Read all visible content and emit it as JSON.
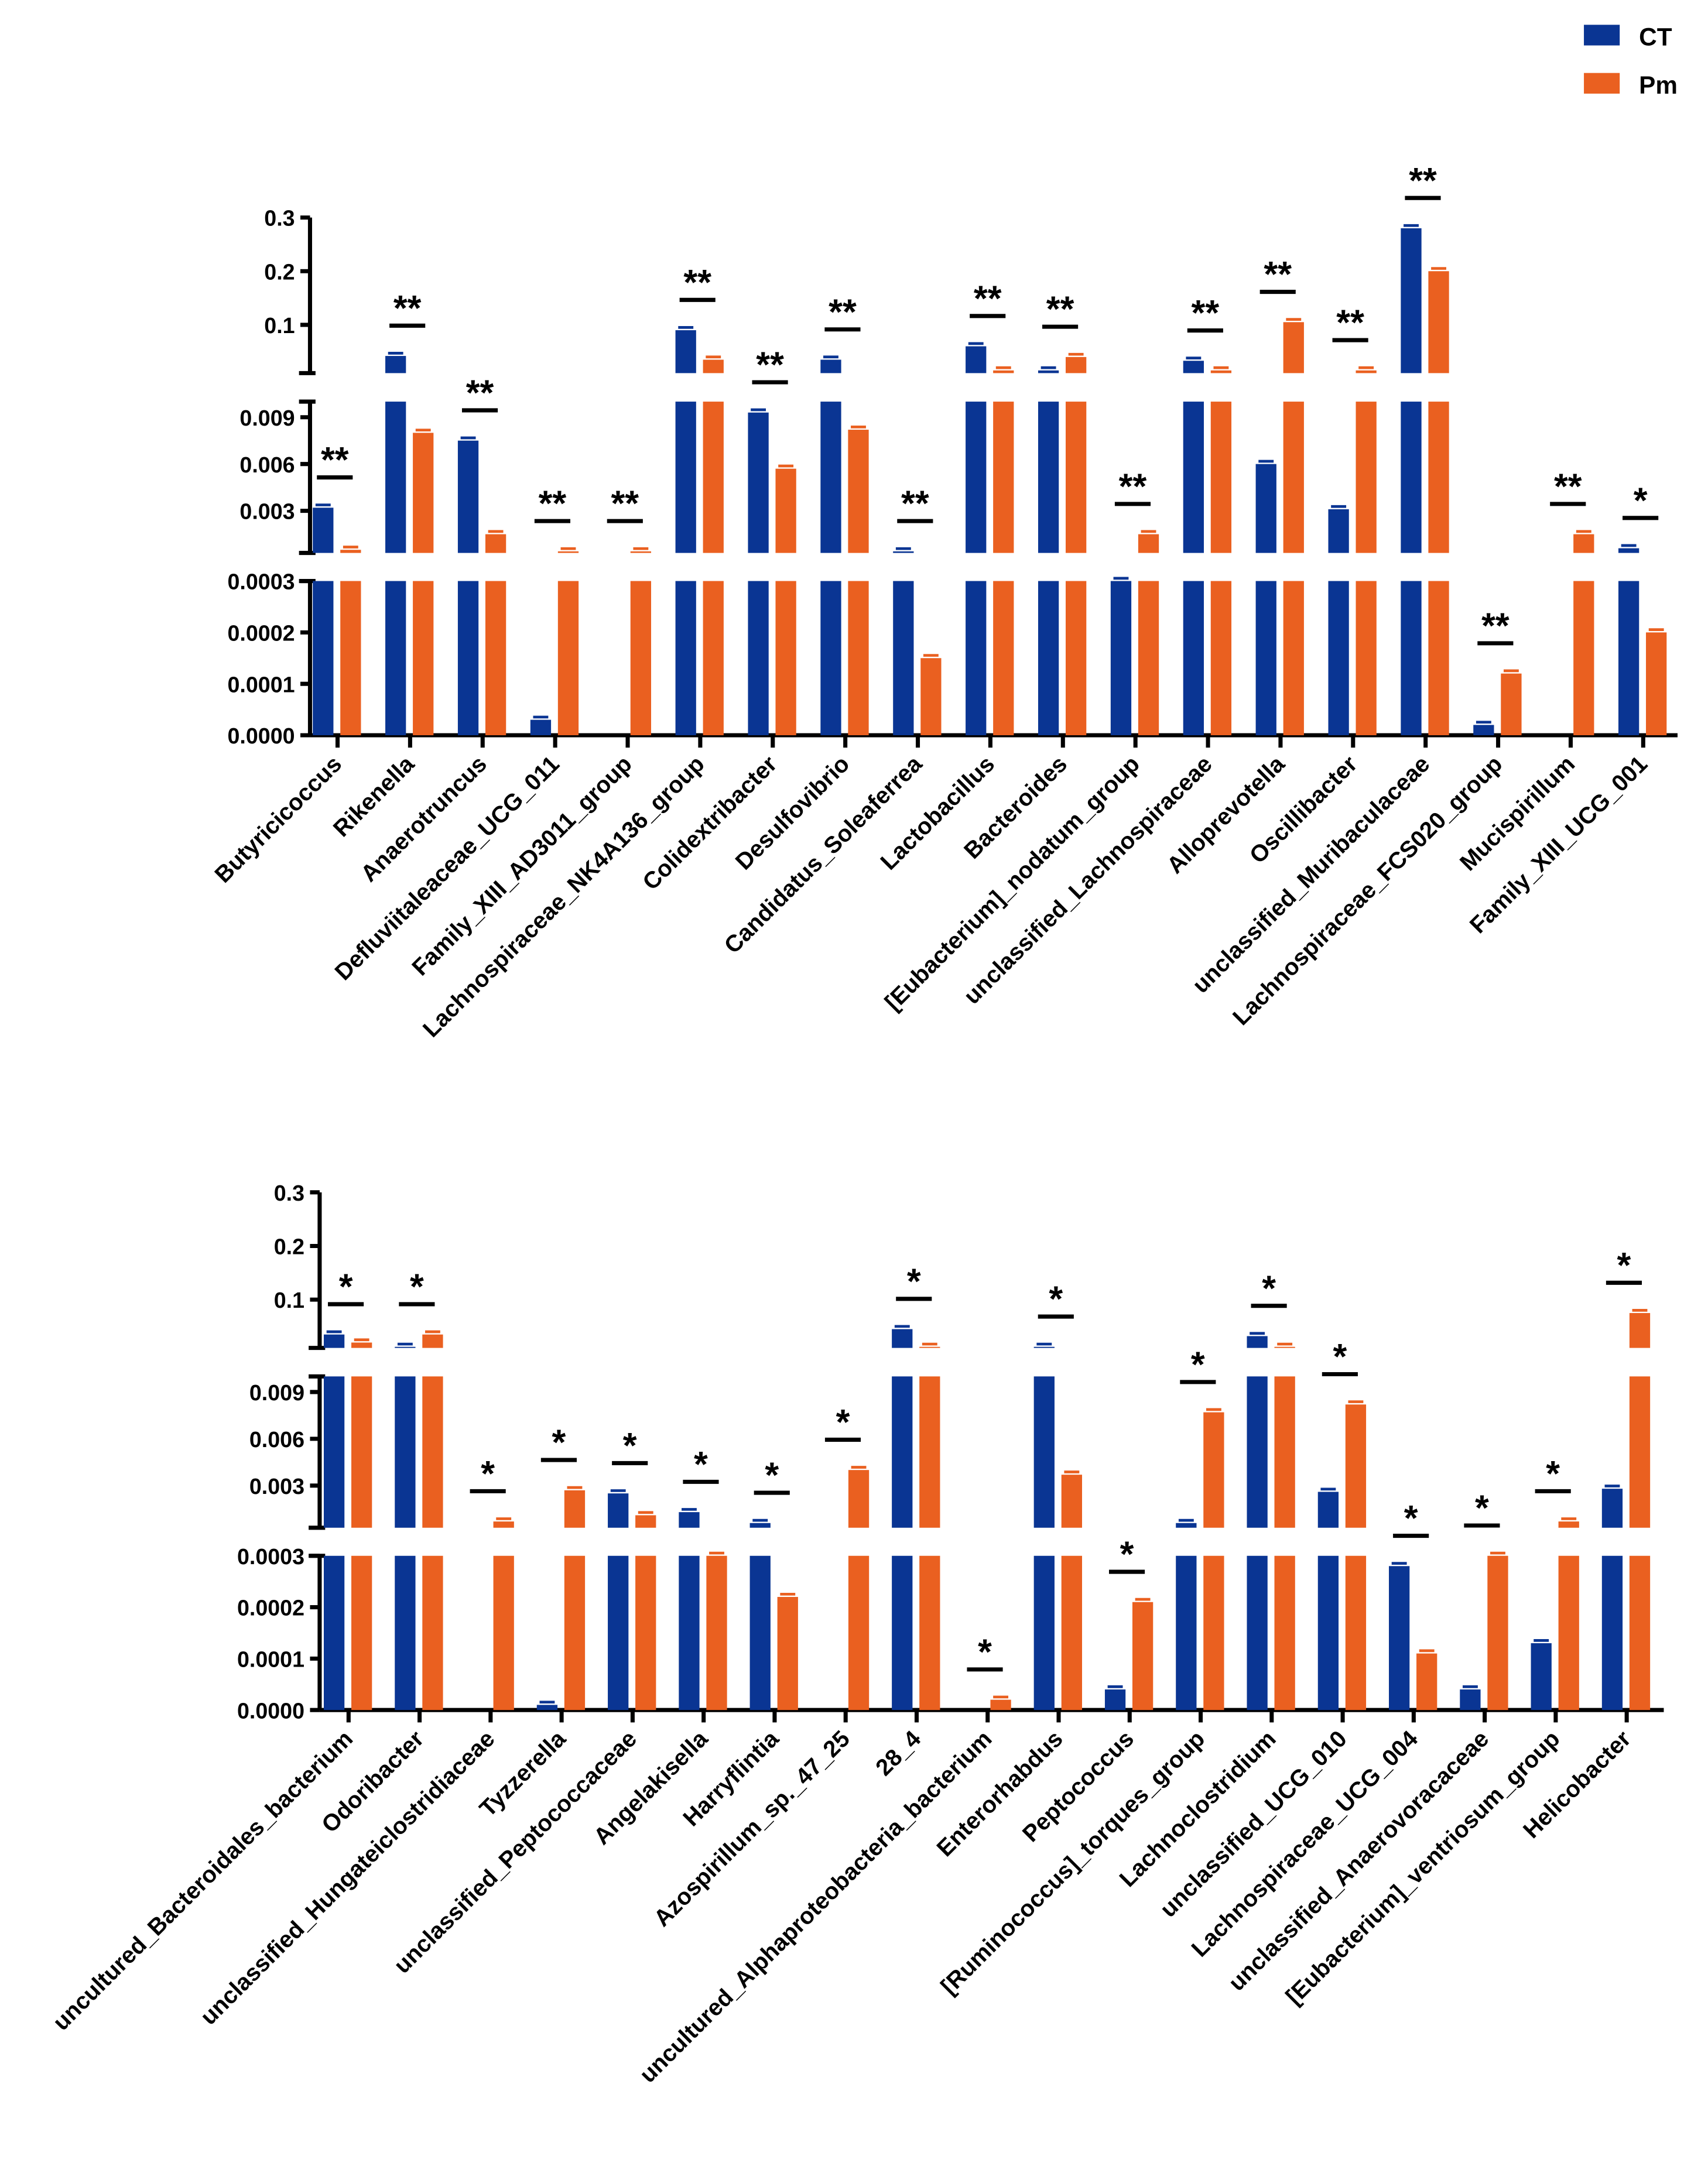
{
  "legend": {
    "placement": "top-right",
    "items": [
      {
        "name": "CT",
        "color": "#0a3593"
      },
      {
        "name": "Pm",
        "color": "#ea6020"
      }
    ]
  },
  "chart_data": [
    {
      "type": "bar",
      "y_axis": {
        "broken": true,
        "segments": [
          [
            0,
            0.0003
          ],
          [
            0.0003,
            0.01
          ],
          [
            0.01,
            0.3
          ]
        ],
        "tick_labels": [
          [
            "0.0000",
            "0.0001",
            "0.0002",
            "0.0003"
          ],
          [
            "0.003",
            "0.006",
            "0.009"
          ],
          [
            "0.1",
            "0.2",
            "0.3"
          ]
        ]
      },
      "categories": [
        "Butyricicoccus",
        "Rikenella",
        "Anaerotruncus",
        "Defluviitaleaceae_UCG_011",
        "Family_XIII_AD3011_group",
        "Lachnospiraceae_NK4A136_group",
        "Colidextribacter",
        "Desulfovibrio",
        "Candidatus_Soleaferrea",
        "Lactobacillus",
        "Bacteroides",
        "[Eubacterium]_nodatum_group",
        "unclassified_Lachnospiraceae",
        "Alloprevotella",
        "Oscillibacter",
        "unclassified_Muribaculaceae",
        "Lachnospiraceae_FCS020_group",
        "Mucispirillum",
        "Family_XIII_UCG_001"
      ],
      "series": [
        {
          "name": "CT",
          "values": [
            0.0032,
            0.042,
            0.0075,
            3e-05,
            0,
            0.09,
            0.0093,
            0.035,
            0.0004,
            0.06,
            0.015,
            0.0003,
            0.033,
            0.006,
            0.0031,
            0.28,
            2e-05,
            0,
            0.0006
          ]
        },
        {
          "name": "Pm",
          "values": [
            0.0005,
            0.008,
            0.0015,
            0.0004,
            0.0004,
            0.035,
            0.0057,
            0.0082,
            0.00015,
            0.015,
            0.04,
            0.0015,
            0.015,
            0.105,
            0.015,
            0.2,
            0.00012,
            0.0015,
            0.0002
          ]
        }
      ],
      "significance": [
        "**",
        "**",
        "**",
        "**",
        "**",
        "**",
        "**",
        "**",
        "**",
        "**",
        "**",
        "**",
        "**",
        "**",
        "**",
        "**",
        "**",
        "**",
        "*"
      ]
    },
    {
      "type": "bar",
      "y_axis": {
        "broken": true,
        "segments": [
          [
            0,
            0.0003
          ],
          [
            0.0003,
            0.01
          ],
          [
            0.01,
            0.3
          ]
        ],
        "tick_labels": [
          [
            "0.0000",
            "0.0001",
            "0.0002",
            "0.0003"
          ],
          [
            "0.003",
            "0.006",
            "0.009"
          ],
          [
            "0.1",
            "0.2",
            "0.3"
          ]
        ]
      },
      "categories": [
        "uncultured_Bacteroidales_bacterium",
        "Odoribacter",
        "unclassified_Hungateiclostridiaceae",
        "Tyzzerella",
        "unclassified_Peptococcaceae",
        "Angelakisella",
        "Harryflintia",
        "Azospirillum_sp._47_25",
        "28_4",
        "uncultured_Alphaproteobacteria_bacterium",
        "Enterorhabdus",
        "Peptococcus",
        "[Ruminococcus]_torques_group",
        "Lachnoclostridium",
        "unclassified_UCG_010",
        "Lachnospiraceae_UCG_004",
        "unclassified_Anaerovoracaceae",
        "[Eubacterium]_ventriosum_group",
        "Helicobacter"
      ],
      "series": [
        {
          "name": "CT",
          "values": [
            0.035,
            0.012,
            0,
            1e-05,
            0.0025,
            0.0013,
            0.0006,
            0,
            0.045,
            0,
            0.012,
            4e-05,
            0.0006,
            0.032,
            0.0026,
            0.00028,
            4e-05,
            0.00013,
            0.0028
          ]
        },
        {
          "name": "Pm",
          "values": [
            0.02,
            0.035,
            0.0007,
            0.0027,
            0.0011,
            0.0003,
            0.00022,
            0.004,
            0.012,
            2e-05,
            0.0037,
            0.00021,
            0.0077,
            0.012,
            0.0082,
            0.00011,
            0.0003,
            0.0007,
            0.075
          ]
        }
      ],
      "significance": [
        "*",
        "*",
        "*",
        "*",
        "*",
        "*",
        "*",
        "*",
        "*",
        "*",
        "*",
        "*",
        "*",
        "*",
        "*",
        "*",
        "*",
        "*",
        "*"
      ]
    }
  ]
}
